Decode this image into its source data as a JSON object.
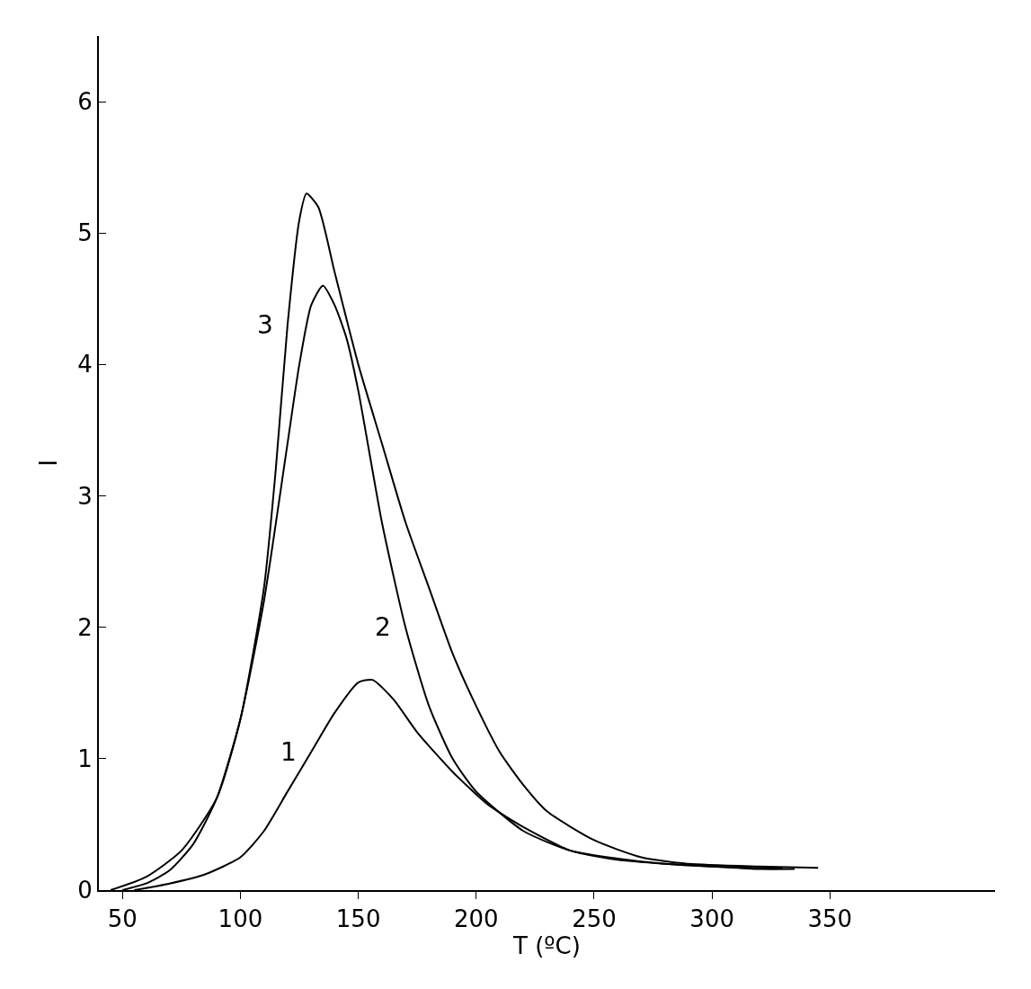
{
  "chart_data": {
    "type": "line",
    "xlabel": "T (ºC)",
    "ylabel": "I",
    "xlim": [
      40,
      420
    ],
    "ylim": [
      0,
      6.5
    ],
    "xticks": [
      50,
      100,
      150,
      200,
      250,
      300,
      350
    ],
    "yticks": [
      0,
      1,
      2,
      3,
      4,
      5,
      6
    ],
    "legend": false,
    "series": [
      {
        "name": "1",
        "color": "#000000",
        "x": [
          55,
          70,
          85,
          100,
          110,
          120,
          130,
          140,
          150,
          156,
          165,
          175,
          190,
          205,
          220,
          240,
          260,
          280,
          300,
          320,
          335
        ],
        "values": [
          0,
          0.05,
          0.12,
          0.25,
          0.45,
          0.75,
          1.05,
          1.35,
          1.58,
          1.6,
          1.45,
          1.2,
          0.9,
          0.65,
          0.48,
          0.3,
          0.23,
          0.2,
          0.18,
          0.16,
          0.16
        ]
      },
      {
        "name": "2",
        "color": "#000000",
        "x": [
          50,
          60,
          70,
          80,
          90,
          100,
          110,
          120,
          125,
          130,
          135,
          140,
          145,
          150,
          160,
          170,
          180,
          190,
          200,
          220,
          240,
          260,
          280,
          300,
          330
        ],
        "values": [
          0,
          0.05,
          0.15,
          0.35,
          0.7,
          1.3,
          2.2,
          3.4,
          4.0,
          4.45,
          4.6,
          4.45,
          4.2,
          3.8,
          2.8,
          2.0,
          1.4,
          1.0,
          0.75,
          0.45,
          0.3,
          0.24,
          0.2,
          0.18,
          0.17
        ]
      },
      {
        "name": "3",
        "color": "#000000",
        "x": [
          45,
          60,
          75,
          90,
          100,
          110,
          115,
          120,
          125,
          128,
          133,
          140,
          150,
          160,
          170,
          180,
          190,
          200,
          210,
          220,
          230,
          250,
          270,
          290,
          320,
          345
        ],
        "values": [
          0,
          0.1,
          0.3,
          0.7,
          1.3,
          2.3,
          3.2,
          4.3,
          5.1,
          5.3,
          5.2,
          4.7,
          4.0,
          3.4,
          2.8,
          2.3,
          1.8,
          1.4,
          1.05,
          0.8,
          0.6,
          0.38,
          0.25,
          0.2,
          0.18,
          0.17
        ]
      }
    ]
  }
}
